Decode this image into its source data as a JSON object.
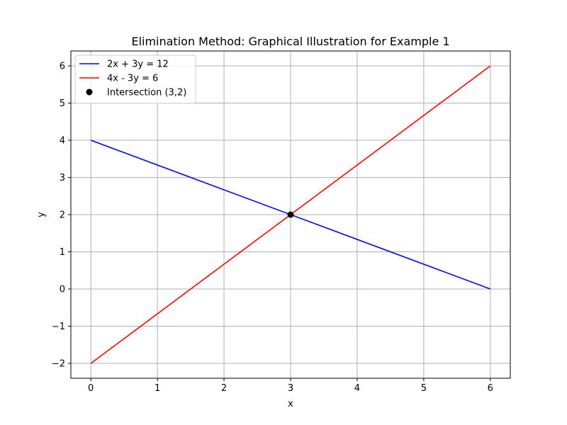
{
  "chart_data": {
    "type": "line",
    "title": "Elimination Method: Graphical Illustration for Example 1",
    "xlabel": "x",
    "ylabel": "y",
    "xlim": [
      -0.3,
      6.3
    ],
    "ylim": [
      -2.4,
      6.4
    ],
    "xticks": [
      0,
      1,
      2,
      3,
      4,
      5,
      6
    ],
    "yticks": [
      -2,
      -1,
      0,
      1,
      2,
      3,
      4,
      5,
      6
    ],
    "xtick_labels": [
      "0",
      "1",
      "2",
      "3",
      "4",
      "5",
      "6"
    ],
    "ytick_labels": [
      "−2",
      "−1",
      "0",
      "1",
      "2",
      "3",
      "4",
      "5",
      "6"
    ],
    "grid": true,
    "legend_position": "top-left",
    "series": [
      {
        "name": "2x + 3y = 12",
        "color": "#0000ff",
        "x": [
          0,
          6
        ],
        "y": [
          4,
          0
        ]
      },
      {
        "name": "4x - 3y = 6",
        "color": "#ff0000",
        "x": [
          0,
          6
        ],
        "y": [
          -2,
          6
        ]
      }
    ],
    "points": [
      {
        "name": "Intersection (3,2)",
        "color": "#000000",
        "x": 3,
        "y": 2
      }
    ]
  }
}
